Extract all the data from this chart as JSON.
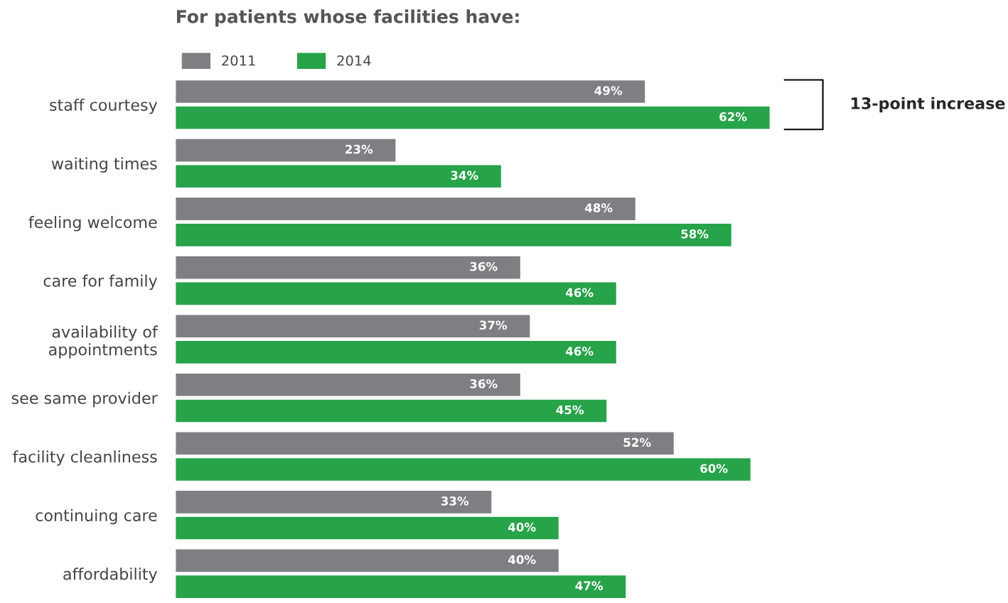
{
  "chart_data": {
    "type": "bar",
    "orientation": "horizontal",
    "title": "For patients whose facilities have:",
    "categories": [
      "staff courtesy",
      "waiting times",
      "feeling welcome",
      "care for family",
      "availability of\nappointments",
      "see same provider",
      "facility cleanliness",
      "continuing care",
      "affordability"
    ],
    "series": [
      {
        "name": "2011",
        "color": "#7f7f83",
        "values": [
          49,
          23,
          48,
          36,
          37,
          36,
          52,
          33,
          40
        ],
        "value_labels": [
          "49%",
          "23%",
          "48%",
          "36%",
          "37%",
          "36%",
          "52%",
          "33%",
          "40%"
        ]
      },
      {
        "name": "2014",
        "color": "#27a34a",
        "values": [
          62,
          34,
          58,
          46,
          46,
          45,
          60,
          40,
          47
        ],
        "value_labels": [
          "62%",
          "34%",
          "58%",
          "46%",
          "46%",
          "45%",
          "60%",
          "40%",
          "47%"
        ]
      }
    ],
    "legend": "top left",
    "grid": false,
    "annotations": [
      "13-point increase"
    ]
  }
}
